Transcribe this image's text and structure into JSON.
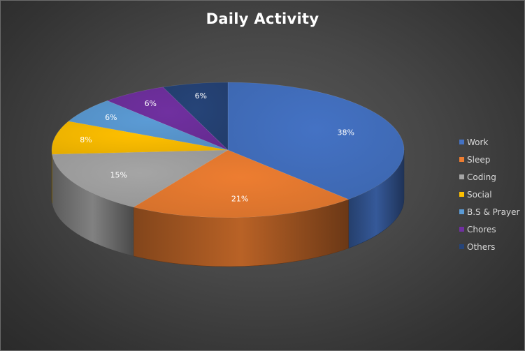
{
  "chart_data": {
    "type": "pie",
    "title": "Daily Activity",
    "categories": [
      "Work",
      "Sleep",
      "Coding",
      "Social",
      "B.S & Prayer",
      "Chores",
      "Others"
    ],
    "values": [
      38,
      21,
      15,
      8,
      6,
      6,
      6
    ],
    "data_labels": [
      "38%",
      "21%",
      "15%",
      "8%",
      "6%",
      "6%",
      "6%"
    ],
    "colors": [
      "#4472c4",
      "#ed7d31",
      "#a5a5a5",
      "#ffc000",
      "#5b9bd5",
      "#7030a0",
      "#264478"
    ],
    "style": "3d",
    "legend_position": "right"
  }
}
